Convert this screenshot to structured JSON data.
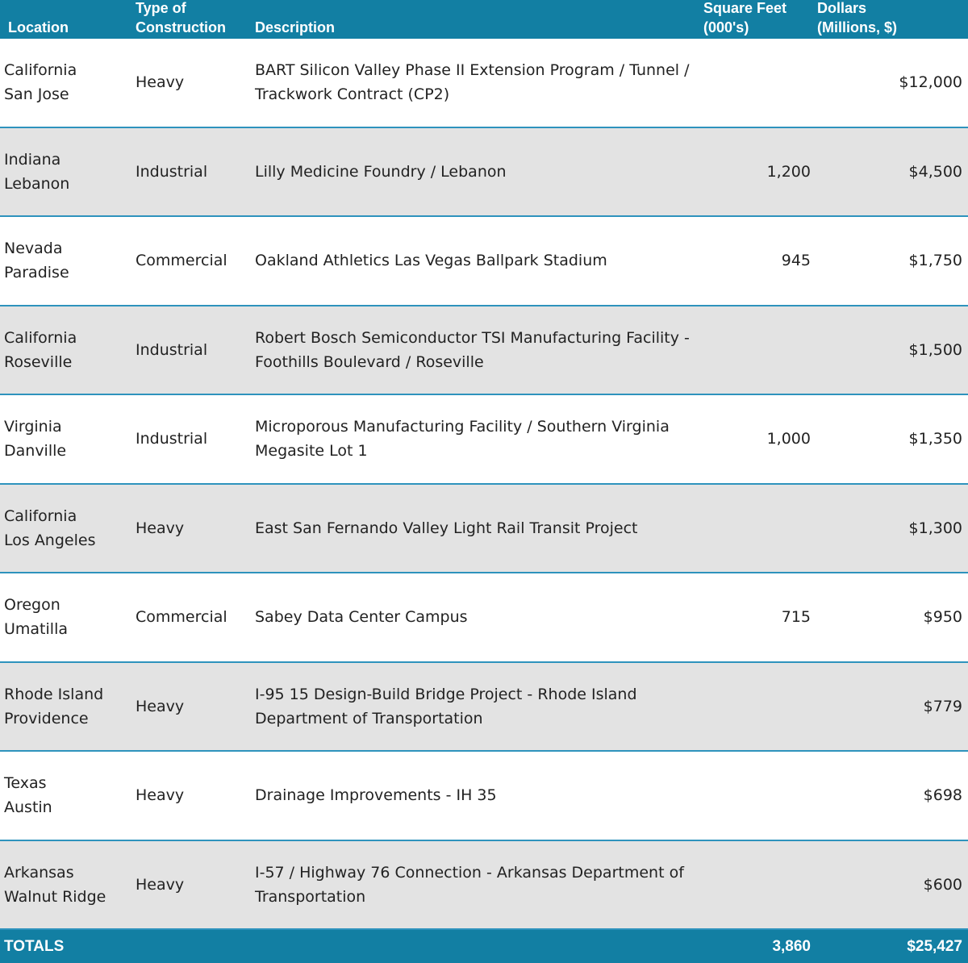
{
  "header": {
    "location": [
      "Location"
    ],
    "type": [
      "Type of",
      "Construction"
    ],
    "description": [
      "Description"
    ],
    "sqft": [
      "Square Feet",
      "(000's)"
    ],
    "dollars": [
      "Dollars",
      "(Millions, $)"
    ]
  },
  "rows": [
    {
      "state": "California",
      "city": "San Jose",
      "type": "Heavy",
      "description": "BART Silicon Valley Phase II Extension Program / Tunnel / Trackwork Contract (CP2)",
      "dollars": "$12,000"
    },
    {
      "state": "Indiana",
      "city": "Lebanon",
      "type": "Industrial",
      "description": "Lilly Medicine Foundry / Lebanon",
      "sqft": "1,200",
      "dollars": "$4,500"
    },
    {
      "state": "Nevada",
      "city": "Paradise",
      "type": "Commercial",
      "description": "Oakland Athletics Las Vegas Ballpark Stadium",
      "sqft": "945",
      "dollars": "$1,750"
    },
    {
      "state": "California",
      "city": "Roseville",
      "type": "Industrial",
      "description": "Robert Bosch Semiconductor TSI Manufacturing Facility - Foothills Boulevard / Roseville",
      "dollars": "$1,500"
    },
    {
      "state": "Virginia",
      "city": "Danville",
      "type": "Industrial",
      "description": "Microporous Manufacturing Facility / Southern Virginia Megasite Lot 1",
      "sqft": "1,000",
      "dollars": "$1,350"
    },
    {
      "state": "California",
      "city": "Los Angeles",
      "type": "Heavy",
      "description": "East San Fernando Valley Light Rail Transit Project",
      "dollars": "$1,300"
    },
    {
      "state": "Oregon",
      "city": "Umatilla",
      "type": "Commercial",
      "description": "Sabey Data Center Campus",
      "sqft": "715",
      "dollars": "$950"
    },
    {
      "state": "Rhode Island",
      "city": "Providence",
      "type": "Heavy",
      "description": "I-95 15 Design-Build Bridge Project - Rhode Island Department of Transportation",
      "dollars": "$779"
    },
    {
      "state": "Texas",
      "city": "Austin",
      "type": "Heavy",
      "description": "Drainage Improvements - IH 35",
      "dollars": "$698"
    },
    {
      "state": "Arkansas",
      "city": "Walnut Ridge",
      "type": "Heavy",
      "description": "I-57 / Highway 76 Connection - Arkansas Department of Transportation",
      "dollars": "$600"
    }
  ],
  "totals": {
    "label": "TOTALS",
    "sqft": "3,860",
    "dollars": "$25,427"
  }
}
